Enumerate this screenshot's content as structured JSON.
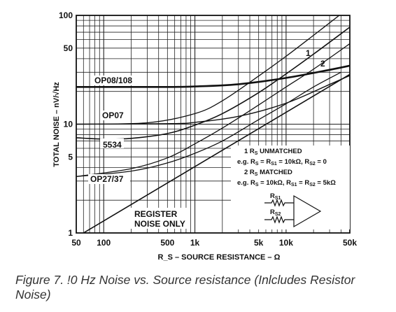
{
  "chart_data": {
    "type": "line",
    "xlabel": "R_S – SOURCE RESISTANCE – Ω",
    "ylabel": "TOTAL NOISE – nV/√Hz",
    "xscale": "log",
    "yscale": "log",
    "xlim": [
      50,
      50000
    ],
    "ylim": [
      1,
      100
    ],
    "grid": true,
    "x_ticks": [
      {
        "value": 50,
        "label": "50"
      },
      {
        "value": 100,
        "label": "100"
      },
      {
        "value": 500,
        "label": "500"
      },
      {
        "value": 1000,
        "label": "1k"
      },
      {
        "value": 5000,
        "label": "5k"
      },
      {
        "value": 10000,
        "label": "10k"
      },
      {
        "value": 50000,
        "label": "50k"
      }
    ],
    "y_ticks": [
      {
        "value": 1,
        "label": "1"
      },
      {
        "value": 5,
        "label": "5"
      },
      {
        "value": 10,
        "label": "10"
      },
      {
        "value": 50,
        "label": "50"
      },
      {
        "value": 100,
        "label": "100"
      }
    ],
    "series": [
      {
        "name": "OP08/108",
        "width": 2.6,
        "points": [
          [
            50,
            22
          ],
          [
            500,
            22
          ],
          [
            1000,
            22.2
          ],
          [
            3000,
            23.3
          ],
          [
            10000,
            26.6
          ],
          [
            30000,
            31.6
          ],
          [
            50000,
            34.5
          ]
        ]
      },
      {
        "name": "OP07",
        "width": 1.4,
        "points": [
          [
            50,
            10.0
          ],
          [
            500,
            10.1
          ],
          [
            1000,
            10.4
          ],
          [
            3000,
            11.8
          ],
          [
            10000,
            15.6
          ],
          [
            30000,
            23.2
          ],
          [
            50000,
            28.0
          ]
        ]
      },
      {
        "name": "OP07 (1)",
        "width": 1.3,
        "points": [
          [
            50,
            10.0
          ],
          [
            300,
            10.3
          ],
          [
            1000,
            12.5
          ],
          [
            2000,
            16.4
          ],
          [
            5000,
            27.7
          ],
          [
            10000,
            42.1
          ],
          [
            20000,
            65.6
          ],
          [
            40000,
            103
          ]
        ]
      },
      {
        "name": "5534",
        "width": 1.6,
        "points": [
          [
            50,
            7.5
          ],
          [
            100,
            7.3
          ],
          [
            200,
            7.4
          ],
          [
            500,
            8.2
          ],
          [
            1000,
            9.8
          ],
          [
            2000,
            12.5
          ],
          [
            5000,
            19.5
          ],
          [
            10000,
            29.0
          ],
          [
            20000,
            44.0
          ],
          [
            50000,
            78
          ]
        ]
      },
      {
        "name": "OP27/37",
        "width": 1.3,
        "points": [
          [
            50,
            3.3
          ],
          [
            200,
            3.7
          ],
          [
            500,
            4.4
          ],
          [
            1000,
            5.4
          ],
          [
            2000,
            7.0
          ],
          [
            5000,
            11.0
          ],
          [
            10000,
            15.4
          ],
          [
            20000,
            22.0
          ],
          [
            40000,
            30.0
          ]
        ]
      },
      {
        "name": "OP27/37 (1)",
        "width": 1.3,
        "points": [
          [
            50,
            3.3
          ],
          [
            200,
            3.9
          ],
          [
            500,
            4.9
          ],
          [
            1000,
            6.6
          ],
          [
            2000,
            9.2
          ],
          [
            5000,
            15.0
          ],
          [
            10000,
            22.0
          ],
          [
            20000,
            32.0
          ],
          [
            50000,
            55.0
          ],
          [
            60000,
            62.0
          ]
        ]
      },
      {
        "name": "REGISTER NOISE ONLY",
        "width": 1.6,
        "points": [
          [
            60,
            1.0
          ],
          [
            50000,
            28.7
          ]
        ]
      }
    ],
    "labels": {
      "op08": "OP08/108",
      "op07": "OP07",
      "n5534": "5534",
      "op27": "OP27/37",
      "one": "1",
      "two": "2",
      "register_1": "REGISTER",
      "register_2": "NOISE ONLY"
    },
    "annotation": {
      "l1_num": "1 R",
      "l1_sub": "S",
      "l1_rest": " UNMATCHED",
      "l2": "e.g. R",
      "l2_s1": "S",
      "l2_m1": " = R",
      "l2_s2": "S1",
      "l2_m2": " = 10kΩ, R",
      "l2_s3": "S2",
      "l2_end": " = 0",
      "l3_num": "2 R",
      "l3_sub": "S",
      "l3_rest": " MATCHED",
      "l4": "e.g. R",
      "l4_s1": "S",
      "l4_m1": " = 10kΩ, R",
      "l4_s2": "S1",
      "l4_m2": " = R",
      "l4_s3": "S2",
      "l4_end": " = 5kΩ",
      "rs1": "R",
      "rs1_sub": "S1",
      "rs2": "R",
      "rs2_sub": "S2"
    }
  },
  "caption": "Figure 7. !0 Hz Noise vs. Source resistance (Inlcludes Resistor Noise)"
}
